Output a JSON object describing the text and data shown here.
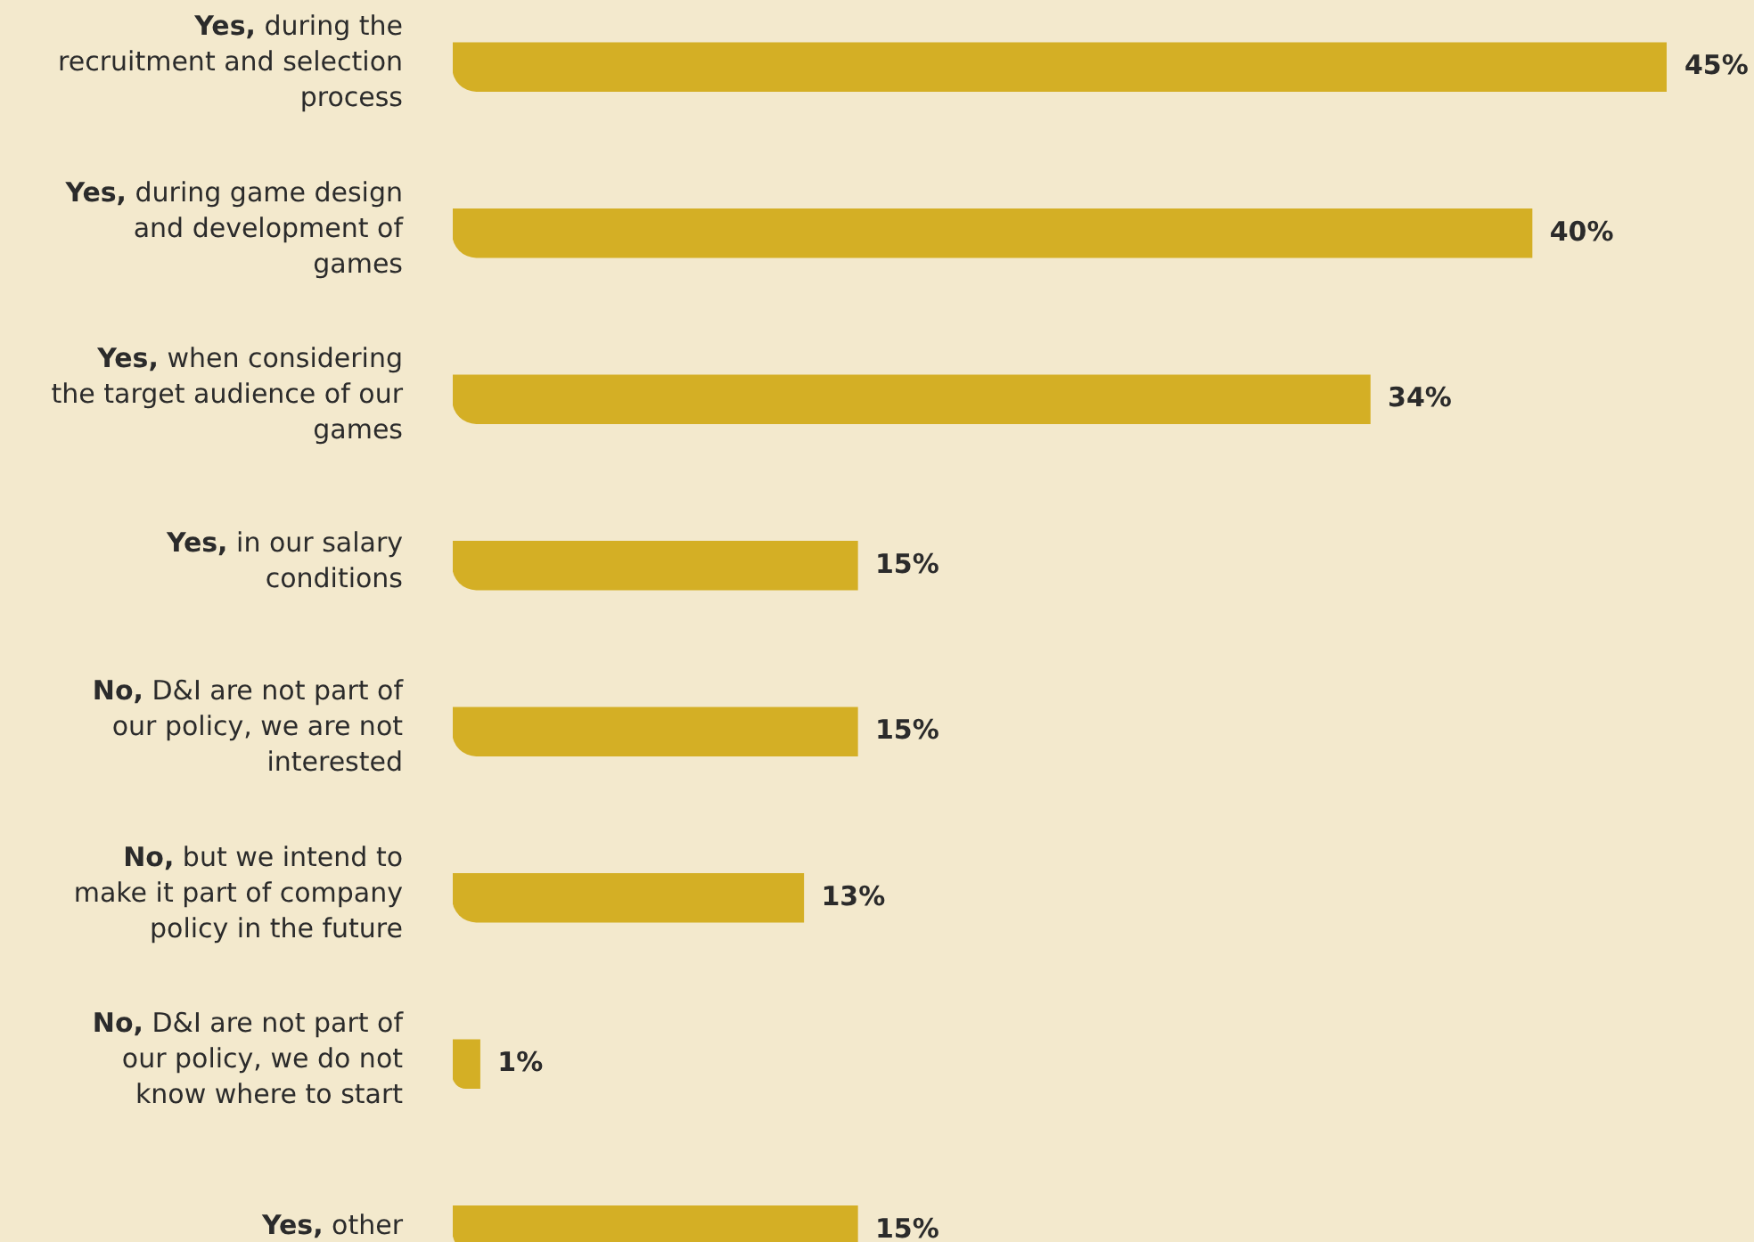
{
  "chart_data": {
    "type": "bar",
    "orientation": "horizontal",
    "legend": false,
    "tick_labels": "y",
    "categories": [
      "Yes, during the recruitment and selection process",
      "Yes, during game design and development of games",
      "Yes, when considering the target audience of our games",
      "Yes, in our salary conditions",
      "No, D&I are not part of our policy, we are not interested",
      "No, but we intend to make it part of company policy in the future",
      "No, D&I are not part of our policy, we do not know where to start",
      "Yes, other"
    ],
    "values": [
      45,
      40,
      34,
      15,
      15,
      13,
      1,
      15
    ],
    "value_labels": [
      "45%",
      "40%",
      "34%",
      "15%",
      "15%",
      "13%",
      "1%",
      "15%"
    ],
    "color": "#d4af25"
  }
}
